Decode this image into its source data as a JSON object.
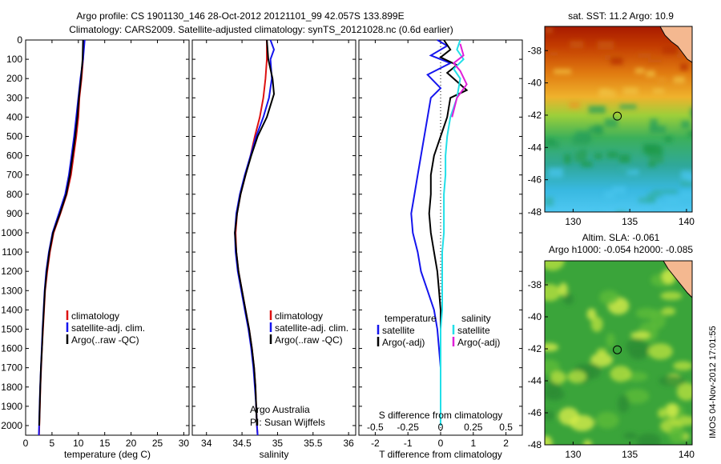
{
  "header": {
    "line1": "Argo profile: CS 1901130_146 28-Oct-2012 20121101_99 42.057S 133.899E",
    "line2": "Climatology: CARS2009. Satellite-adjusted climatology: synTS_20121028.nc (0.6d earlier)"
  },
  "stamp": "IMOS 04-Nov-2012 17:01:55",
  "credits": {
    "line1": "Argo Australia",
    "line2": "PI: Susan Wijffels"
  },
  "colors": {
    "climatology": "#dd1111",
    "satellite": "#1515ee",
    "argo": "#000000",
    "sat_salinity": "#22dfe8",
    "argo_salinity": "#e020d8"
  },
  "chart_data": [
    {
      "id": "temperature",
      "type": "line",
      "xlabel": "temperature (deg C)",
      "ylabel": "",
      "xlim": [
        0,
        31
      ],
      "ylim": [
        2050,
        0
      ],
      "xticks": [
        0,
        5,
        10,
        15,
        20,
        25,
        30
      ],
      "yticks": [
        0,
        100,
        200,
        300,
        400,
        500,
        600,
        700,
        800,
        900,
        1000,
        1100,
        1200,
        1300,
        1400,
        1500,
        1600,
        1700,
        1800,
        1900,
        2000
      ],
      "legend": [
        "climatology",
        "satellite-adj. clim.",
        "Argo(..raw -QC)"
      ],
      "series": [
        {
          "name": "climatology",
          "color": "#dd1111",
          "points": [
            [
              11.0,
              0
            ],
            [
              10.9,
              100
            ],
            [
              10.6,
              200
            ],
            [
              10.2,
              300
            ],
            [
              10.0,
              400
            ],
            [
              9.6,
              500
            ],
            [
              9.1,
              600
            ],
            [
              8.6,
              700
            ],
            [
              7.8,
              800
            ],
            [
              6.6,
              900
            ],
            [
              5.3,
              1000
            ],
            [
              4.6,
              1100
            ],
            [
              4.1,
              1200
            ],
            [
              3.7,
              1300
            ],
            [
              3.5,
              1400
            ],
            [
              3.3,
              1500
            ],
            [
              3.1,
              1600
            ],
            [
              2.95,
              1700
            ],
            [
              2.8,
              1800
            ],
            [
              2.7,
              1900
            ],
            [
              2.6,
              2000
            ],
            [
              2.55,
              2050
            ]
          ]
        },
        {
          "name": "satellite-adj. clim.",
          "color": "#1515ee",
          "points": [
            [
              11.2,
              0
            ],
            [
              10.9,
              100
            ],
            [
              10.4,
              200
            ],
            [
              10.0,
              300
            ],
            [
              9.6,
              400
            ],
            [
              9.2,
              500
            ],
            [
              8.7,
              600
            ],
            [
              8.2,
              700
            ],
            [
              7.5,
              800
            ],
            [
              6.3,
              900
            ],
            [
              5.1,
              1000
            ],
            [
              4.4,
              1100
            ],
            [
              3.9,
              1200
            ],
            [
              3.6,
              1300
            ],
            [
              3.4,
              1400
            ],
            [
              3.2,
              1500
            ],
            [
              3.05,
              1600
            ],
            [
              2.9,
              1700
            ],
            [
              2.75,
              1800
            ],
            [
              2.65,
              1900
            ],
            [
              2.55,
              2000
            ],
            [
              2.5,
              2050
            ]
          ]
        },
        {
          "name": "Argo(..raw -QC)",
          "color": "#000000",
          "points": [
            [
              10.9,
              0
            ],
            [
              10.8,
              100
            ],
            [
              10.5,
              200
            ],
            [
              10.1,
              300
            ],
            [
              9.8,
              400
            ],
            [
              9.4,
              500
            ],
            [
              8.9,
              600
            ],
            [
              8.4,
              700
            ],
            [
              7.7,
              800
            ],
            [
              6.5,
              900
            ],
            [
              5.2,
              1000
            ],
            [
              4.5,
              1100
            ],
            [
              4.0,
              1200
            ],
            [
              3.65,
              1300
            ],
            [
              3.45,
              1400
            ],
            [
              3.25,
              1500
            ],
            [
              3.1,
              1600
            ],
            [
              2.9,
              1700
            ],
            [
              2.78,
              1800
            ],
            [
              2.68,
              1900
            ],
            [
              2.58,
              2000
            ]
          ]
        }
      ]
    },
    {
      "id": "salinity",
      "type": "line",
      "xlabel": "salinity",
      "ylabel": "",
      "xlim": [
        33.8,
        36.1
      ],
      "ylim": [
        2050,
        0
      ],
      "xticks": [
        34,
        34.5,
        35,
        35.5,
        36
      ],
      "legend": [
        "climatology",
        "satellite-adj. clim.",
        "Argo(..raw -QC)"
      ],
      "series": [
        {
          "name": "climatology",
          "color": "#dd1111",
          "points": [
            [
              34.85,
              0
            ],
            [
              34.85,
              100
            ],
            [
              34.83,
              200
            ],
            [
              34.8,
              300
            ],
            [
              34.75,
              400
            ],
            [
              34.68,
              500
            ],
            [
              34.62,
              600
            ],
            [
              34.55,
              700
            ],
            [
              34.48,
              800
            ],
            [
              34.43,
              900
            ],
            [
              34.41,
              1000
            ],
            [
              34.42,
              1100
            ],
            [
              34.45,
              1200
            ],
            [
              34.5,
              1300
            ],
            [
              34.55,
              1400
            ],
            [
              34.6,
              1500
            ],
            [
              34.64,
              1600
            ],
            [
              34.67,
              1700
            ],
            [
              34.69,
              1800
            ],
            [
              34.7,
              1900
            ],
            [
              34.71,
              2000
            ],
            [
              34.72,
              2050
            ]
          ]
        },
        {
          "name": "satellite-adj. clim.",
          "color": "#1515ee",
          "points": [
            [
              34.9,
              0
            ],
            [
              34.95,
              50
            ],
            [
              34.9,
              100
            ],
            [
              34.92,
              200
            ],
            [
              34.88,
              300
            ],
            [
              34.8,
              400
            ],
            [
              34.7,
              500
            ],
            [
              34.62,
              600
            ],
            [
              34.54,
              700
            ],
            [
              34.47,
              800
            ],
            [
              34.42,
              900
            ],
            [
              34.4,
              1000
            ],
            [
              34.41,
              1100
            ],
            [
              34.44,
              1200
            ],
            [
              34.49,
              1300
            ],
            [
              34.54,
              1400
            ],
            [
              34.59,
              1500
            ],
            [
              34.63,
              1600
            ],
            [
              34.66,
              1700
            ],
            [
              34.68,
              1800
            ],
            [
              34.7,
              1900
            ],
            [
              34.71,
              2000
            ],
            [
              34.72,
              2050
            ]
          ]
        },
        {
          "name": "Argo(..raw -QC)",
          "color": "#000000",
          "points": [
            [
              34.85,
              0
            ],
            [
              34.87,
              100
            ],
            [
              34.93,
              200
            ],
            [
              34.95,
              280
            ],
            [
              34.85,
              400
            ],
            [
              34.72,
              500
            ],
            [
              34.63,
              600
            ],
            [
              34.55,
              700
            ],
            [
              34.48,
              800
            ],
            [
              34.43,
              900
            ],
            [
              34.4,
              1000
            ],
            [
              34.42,
              1100
            ],
            [
              34.45,
              1200
            ],
            [
              34.5,
              1300
            ],
            [
              34.55,
              1400
            ],
            [
              34.6,
              1500
            ],
            [
              34.64,
              1600
            ],
            [
              34.67,
              1700
            ],
            [
              34.69,
              1800
            ],
            [
              34.7,
              1900
            ],
            [
              34.71,
              2000
            ]
          ]
        }
      ]
    },
    {
      "id": "difference",
      "type": "line",
      "xlabel": "T difference from climatology",
      "xlabel2": "S difference from climatology",
      "xlim": [
        -2.5,
        2.5
      ],
      "ylim": [
        2050,
        0
      ],
      "xticks": [
        -2,
        -1,
        0,
        1,
        2
      ],
      "xticks2": [
        "-0.5",
        "-0.25",
        "0",
        "0.25",
        "0.5"
      ],
      "xticks2_pos": [
        -2,
        -1,
        0,
        1,
        2
      ],
      "legend_t_title": "temperature",
      "legend_s_title": "salinity",
      "legend_t": [
        "satellite",
        "Argo(-adj)"
      ],
      "legend_s": [
        "satellite",
        "Argo(-adj)"
      ],
      "series": [
        {
          "name": "satellite",
          "color": "#1515ee",
          "points": [
            [
              -0.1,
              0
            ],
            [
              0.2,
              30
            ],
            [
              -0.3,
              80
            ],
            [
              0.3,
              120
            ],
            [
              -0.4,
              180
            ],
            [
              0.0,
              250
            ],
            [
              -0.3,
              300
            ],
            [
              -0.4,
              400
            ],
            [
              -0.5,
              500
            ],
            [
              -0.6,
              600
            ],
            [
              -0.7,
              700
            ],
            [
              -0.8,
              800
            ],
            [
              -0.9,
              900
            ],
            [
              -0.85,
              1000
            ],
            [
              -0.7,
              1100
            ],
            [
              -0.6,
              1200
            ],
            [
              -0.4,
              1300
            ],
            [
              -0.2,
              1400
            ],
            [
              -0.1,
              1500
            ],
            [
              -0.05,
              1600
            ],
            [
              0.0,
              1700
            ],
            [
              0.0,
              1800
            ],
            [
              0.0,
              1900
            ],
            [
              0.0,
              2000
            ]
          ]
        },
        {
          "name": "Argo(-adj)",
          "color": "#000000",
          "points": [
            [
              0.1,
              0
            ],
            [
              0.3,
              50
            ],
            [
              0.0,
              90
            ],
            [
              0.5,
              130
            ],
            [
              0.2,
              170
            ],
            [
              0.8,
              260
            ],
            [
              0.3,
              300
            ],
            [
              0.2,
              400
            ],
            [
              0.0,
              500
            ],
            [
              -0.2,
              600
            ],
            [
              -0.3,
              700
            ],
            [
              -0.3,
              800
            ],
            [
              -0.35,
              900
            ],
            [
              -0.3,
              1000
            ],
            [
              -0.2,
              1100
            ],
            [
              -0.1,
              1200
            ],
            [
              -0.05,
              1300
            ],
            [
              0.0,
              1400
            ],
            [
              0.0,
              1500
            ],
            [
              0.0,
              1600
            ],
            [
              0.0,
              1800
            ],
            [
              0.0,
              2000
            ]
          ]
        },
        {
          "name": "satellite (salinity)",
          "color": "#22dfe8",
          "points": [
            [
              0.6,
              0
            ],
            [
              0.5,
              50
            ],
            [
              0.7,
              100
            ],
            [
              0.4,
              150
            ],
            [
              0.6,
              200
            ],
            [
              0.5,
              300
            ],
            [
              0.3,
              400
            ],
            [
              0.2,
              500
            ],
            [
              0.15,
              600
            ],
            [
              0.15,
              700
            ],
            [
              0.1,
              800
            ],
            [
              0.1,
              900
            ],
            [
              0.1,
              1000
            ],
            [
              0.05,
              1100
            ],
            [
              0.05,
              1200
            ],
            [
              0.05,
              1300
            ],
            [
              0.05,
              1400
            ],
            [
              0.0,
              1500
            ],
            [
              0.0,
              2000
            ]
          ]
        },
        {
          "name": "Argo(-adj) (salinity)",
          "color": "#e020d8",
          "points": [
            [
              0.6,
              20
            ],
            [
              0.7,
              80
            ],
            [
              0.4,
              120
            ],
            [
              0.6,
              160
            ],
            [
              0.8,
              230
            ],
            [
              0.5,
              300
            ],
            [
              0.35,
              400
            ]
          ]
        }
      ]
    },
    {
      "id": "sst-map",
      "type": "heatmap",
      "title": "sat. SST: 11.2 Argo: 10.9",
      "xlim": [
        127.5,
        140.5
      ],
      "ylim": [
        -48,
        -36.5
      ],
      "xticks": [
        130,
        135,
        140
      ],
      "yticks": [
        -38,
        -40,
        -42,
        -44,
        -46,
        -48
      ],
      "marker": [
        133.9,
        -42.06
      ]
    },
    {
      "id": "sla-map",
      "type": "heatmap",
      "title": "Altim. SLA: -0.061",
      "subtitle": "Argo h1000: -0.054 h2000: -0.085",
      "xlim": [
        127.5,
        140.5
      ],
      "ylim": [
        -48,
        -36.5
      ],
      "xticks": [
        130,
        135,
        140
      ],
      "yticks": [
        -38,
        -40,
        -42,
        -44,
        -46,
        -48
      ],
      "marker": [
        133.9,
        -42.06
      ]
    }
  ]
}
